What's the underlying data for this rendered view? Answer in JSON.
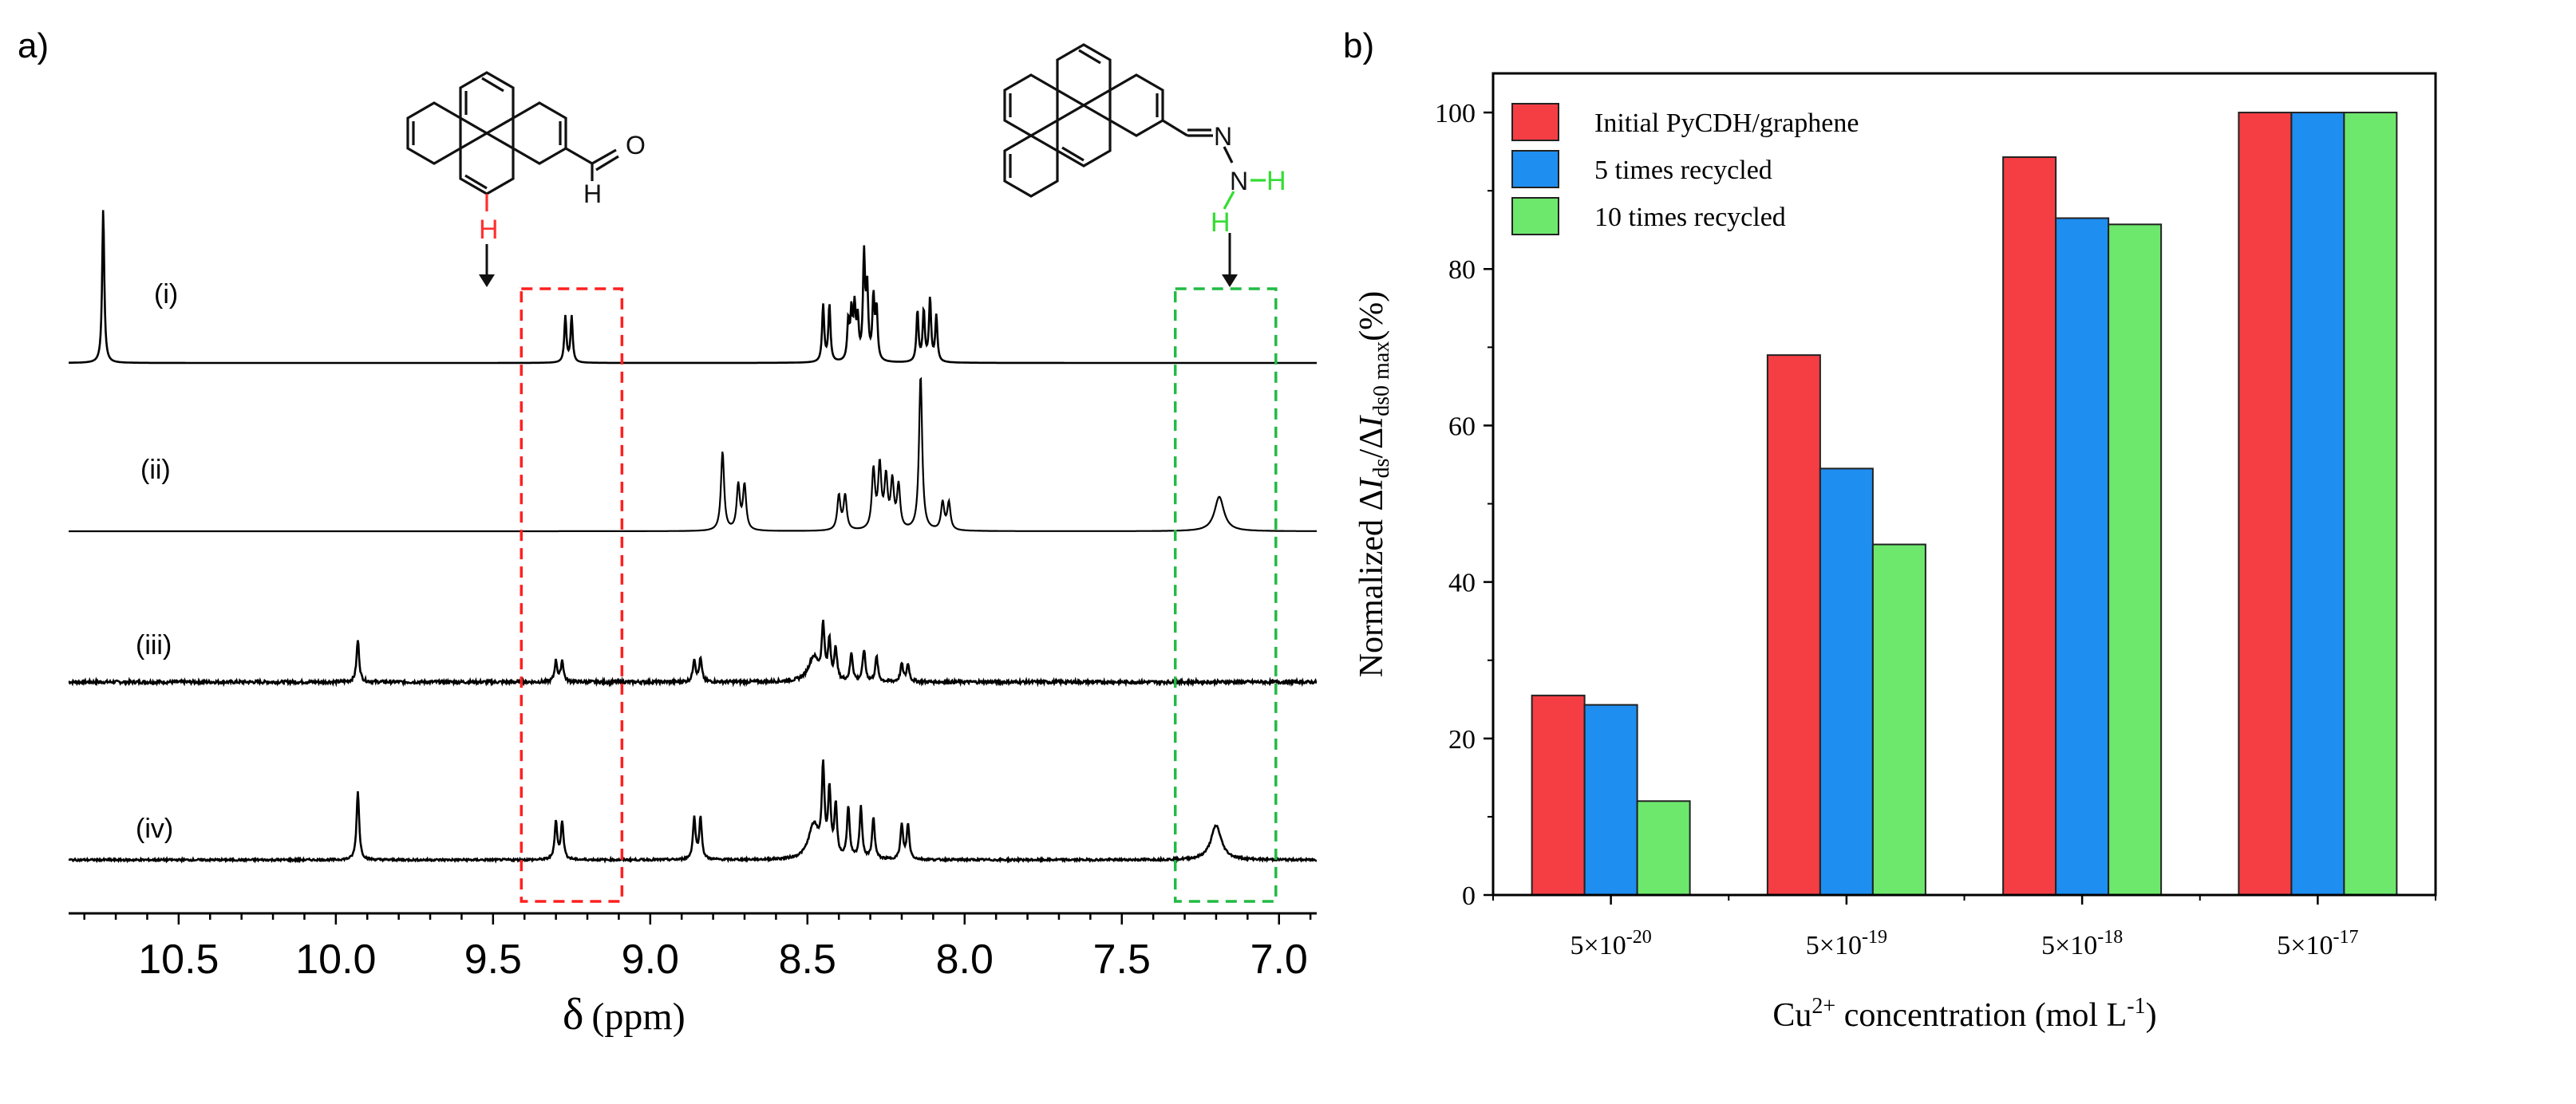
{
  "panel_a": {
    "label": "a)",
    "xaxis": {
      "label_symbol": "δ",
      "label_unit": "(ppm)",
      "range": [
        10.85,
        6.88
      ],
      "ticks": [
        10.5,
        10.0,
        9.5,
        9.0,
        8.5,
        8.0,
        7.5,
        7.0
      ],
      "tick_labels": [
        "10.5",
        "10.0",
        "9.5",
        "9.0",
        "8.5",
        "8.0",
        "7.5",
        "7.0"
      ]
    },
    "spectra": [
      {
        "name": "(i)",
        "peaks": [
          [
            10.74,
            1.0,
            0.004
          ],
          [
            9.27,
            0.3,
            0.004
          ],
          [
            9.25,
            0.3,
            0.004
          ],
          [
            8.45,
            0.37,
            0.004
          ],
          [
            8.43,
            0.37,
            0.004
          ],
          [
            8.37,
            0.25,
            0.004
          ],
          [
            8.36,
            0.3,
            0.004
          ],
          [
            8.35,
            0.33,
            0.004
          ],
          [
            8.34,
            0.25,
            0.004
          ],
          [
            8.32,
            0.67,
            0.004
          ],
          [
            8.31,
            0.45,
            0.004
          ],
          [
            8.29,
            0.4,
            0.004
          ],
          [
            8.28,
            0.33,
            0.004
          ],
          [
            8.15,
            0.33,
            0.004
          ],
          [
            8.13,
            0.33,
            0.004
          ],
          [
            8.11,
            0.41,
            0.004
          ],
          [
            8.09,
            0.3,
            0.004
          ]
        ],
        "noise": 0
      },
      {
        "name": "(ii)",
        "peaks": [
          [
            8.77,
            0.46,
            0.006
          ],
          [
            8.72,
            0.26,
            0.006
          ],
          [
            8.7,
            0.26,
            0.006
          ],
          [
            8.4,
            0.2,
            0.006
          ],
          [
            8.38,
            0.2,
            0.006
          ],
          [
            8.29,
            0.34,
            0.006
          ],
          [
            8.27,
            0.36,
            0.006
          ],
          [
            8.25,
            0.29,
            0.006
          ],
          [
            8.23,
            0.27,
            0.006
          ],
          [
            8.21,
            0.25,
            0.006
          ],
          [
            8.14,
            0.9,
            0.006
          ],
          [
            8.07,
            0.16,
            0.006
          ],
          [
            8.05,
            0.16,
            0.006
          ],
          [
            7.19,
            0.2,
            0.018
          ]
        ],
        "noise": 0
      },
      {
        "name": "(iii)",
        "peaks": [
          [
            9.93,
            0.24,
            0.005
          ],
          [
            9.3,
            0.12,
            0.005
          ],
          [
            9.28,
            0.12,
            0.005
          ],
          [
            8.86,
            0.13,
            0.005
          ],
          [
            8.84,
            0.13,
            0.005
          ],
          [
            8.48,
            0.14,
            0.02
          ],
          [
            8.45,
            0.3,
            0.005
          ],
          [
            8.43,
            0.22,
            0.005
          ],
          [
            8.41,
            0.18,
            0.005
          ],
          [
            8.36,
            0.16,
            0.005
          ],
          [
            8.32,
            0.18,
            0.005
          ],
          [
            8.28,
            0.14,
            0.005
          ],
          [
            8.2,
            0.1,
            0.005
          ],
          [
            8.18,
            0.1,
            0.005
          ]
        ],
        "noise": 0.018
      },
      {
        "name": "(iv)",
        "peaks": [
          [
            9.93,
            0.4,
            0.005
          ],
          [
            9.3,
            0.22,
            0.005
          ],
          [
            9.28,
            0.22,
            0.005
          ],
          [
            8.86,
            0.24,
            0.005
          ],
          [
            8.84,
            0.24,
            0.005
          ],
          [
            8.48,
            0.2,
            0.02
          ],
          [
            8.45,
            0.5,
            0.005
          ],
          [
            8.43,
            0.38,
            0.005
          ],
          [
            8.41,
            0.3,
            0.005
          ],
          [
            8.37,
            0.3,
            0.005
          ],
          [
            8.33,
            0.3,
            0.005
          ],
          [
            8.29,
            0.24,
            0.005
          ],
          [
            8.2,
            0.2,
            0.005
          ],
          [
            8.18,
            0.2,
            0.005
          ],
          [
            7.2,
            0.2,
            0.02
          ]
        ],
        "noise": 0.012
      }
    ],
    "boxes": [
      {
        "name": "red",
        "color": "#ff2020",
        "range": [
          9.41,
          9.09
        ]
      },
      {
        "name": "green",
        "color": "#22bb44",
        "range": [
          7.33,
          7.01
        ]
      }
    ],
    "molecule1": {
      "aldehyde_h": "H",
      "aldehyde_o": "O",
      "highlight_h": "H",
      "highlight_color": "#ff3030"
    },
    "molecule2": {
      "n1": "N",
      "n2": "N",
      "h1": "H",
      "h2": "H",
      "highlight_color": "#33dd33"
    }
  },
  "chart_data": {
    "type": "bar",
    "panel_label": "b)",
    "categories": [
      "5×10^-20",
      "5×10^-19",
      "5×10^-18",
      "5×10^-17"
    ],
    "category_base": "5×10",
    "category_exponents": [
      "-20",
      "-19",
      "-18",
      "-17"
    ],
    "series": [
      {
        "name": "Initial PyCDH/graphene",
        "color": "#f43e44",
        "values": [
          25.5,
          69,
          94.3,
          100
        ]
      },
      {
        "name": "5 times recycled",
        "color": "#1e8ef0",
        "values": [
          24.3,
          54.5,
          86.5,
          100
        ]
      },
      {
        "name": "10 times recycled",
        "color": "#6de86d",
        "values": [
          12,
          44.8,
          85.7,
          100
        ]
      }
    ],
    "ylim": [
      0,
      105
    ],
    "yticks": [
      0,
      20,
      40,
      60,
      80,
      100
    ],
    "ylabel": {
      "prefix": "Normalized Δ",
      "i1": "I",
      "sub1": "ds",
      "mid": "/Δ",
      "i2": "I",
      "sub2": "ds0 max",
      "suffix": "(%)"
    },
    "xlabel": {
      "pre": "Cu",
      "sup": "2+",
      "mid": " concentration (mol L",
      "sup2": "-1",
      "post": ")"
    },
    "legend_position": "top-left"
  }
}
